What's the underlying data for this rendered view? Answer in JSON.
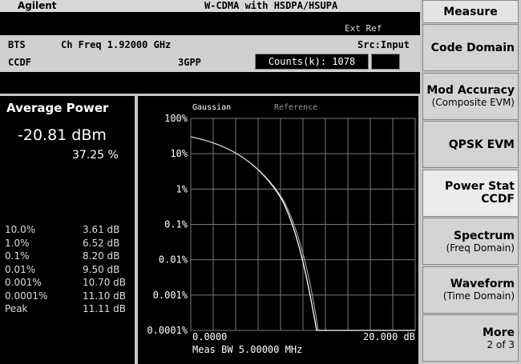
{
  "header": {
    "brand": "Agilent",
    "mode": "W-CDMA with HSDPA/HSUPA",
    "ext_ref": "Ext Ref"
  },
  "status": {
    "row1": [
      "BTS",
      "Ch Freq 1.92000 GHz",
      "Src:Input"
    ],
    "row2": [
      "CCDF",
      "3GPP",
      "Counts(k): 1078"
    ]
  },
  "results": {
    "title": "Average Power",
    "power": "-20.81 dBm",
    "percent": "37.25 %",
    "rows": [
      [
        "10.0%",
        "3.61 dB"
      ],
      [
        "1.0%",
        "6.52 dB"
      ],
      [
        "0.1%",
        "8.20 dB"
      ],
      [
        "0.01%",
        "9.50 dB"
      ],
      [
        "0.001%",
        "10.70 dB"
      ],
      [
        "0.0001%",
        "11.10 dB"
      ],
      [
        "Peak",
        "11.11 dB"
      ]
    ]
  },
  "plot": {
    "legend": [
      "Gaussian",
      "Reference"
    ],
    "yticks": [
      "100%",
      "10%",
      "1%",
      "0.1%",
      "0.01%",
      "0.001%",
      "0.0001%"
    ],
    "x_start": "0.0000",
    "x_end": "20.000 dB",
    "bandwidth": "Meas BW 5.00000 MHz"
  },
  "menu": {
    "title": "Measure",
    "keys": [
      [
        "Code Domain"
      ],
      [
        "Mod Accuracy",
        "(Composite EVM)"
      ],
      [
        "QPSK EVM"
      ],
      [
        "Power Stat",
        "CCDF"
      ],
      [
        "Spectrum",
        "(Freq Domain)"
      ],
      [
        "Waveform",
        "(Time Domain)"
      ],
      [
        "More",
        "2 of 3"
      ]
    ]
  }
}
